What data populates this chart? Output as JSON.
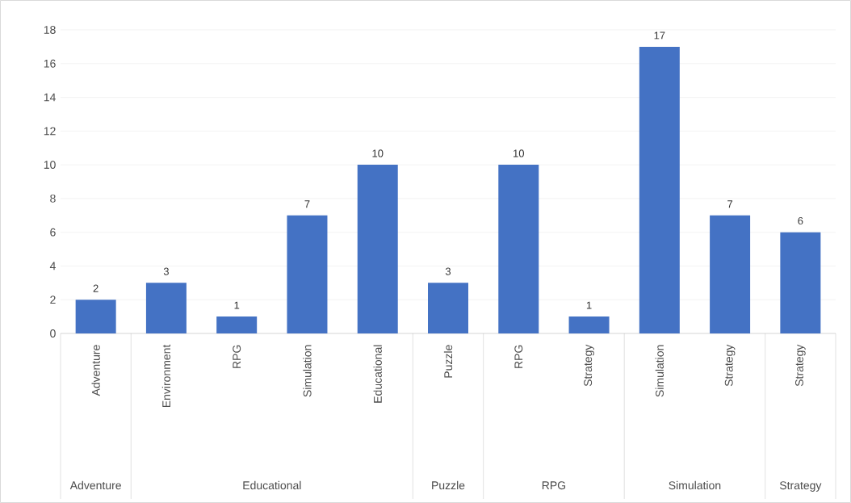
{
  "chart_data": {
    "type": "bar",
    "categories": [
      "Adventure",
      "Environment",
      "RPG",
      "Simulation",
      "Educational",
      "Puzzle",
      "RPG",
      "Strategy",
      "Simulation",
      "Strategy",
      "Strategy"
    ],
    "values": [
      2,
      3,
      1,
      7,
      10,
      3,
      10,
      1,
      17,
      7,
      6
    ],
    "color": "#4472c4",
    "ylim": [
      0,
      18
    ],
    "yticks": [
      0,
      2,
      4,
      6,
      8,
      10,
      12,
      14,
      16,
      18
    ],
    "grid": "y",
    "data_labels": true,
    "annotations": [
      "Adventure",
      "Educational",
      "Puzzle",
      "RPG",
      "Simulation",
      "Strategy"
    ]
  }
}
